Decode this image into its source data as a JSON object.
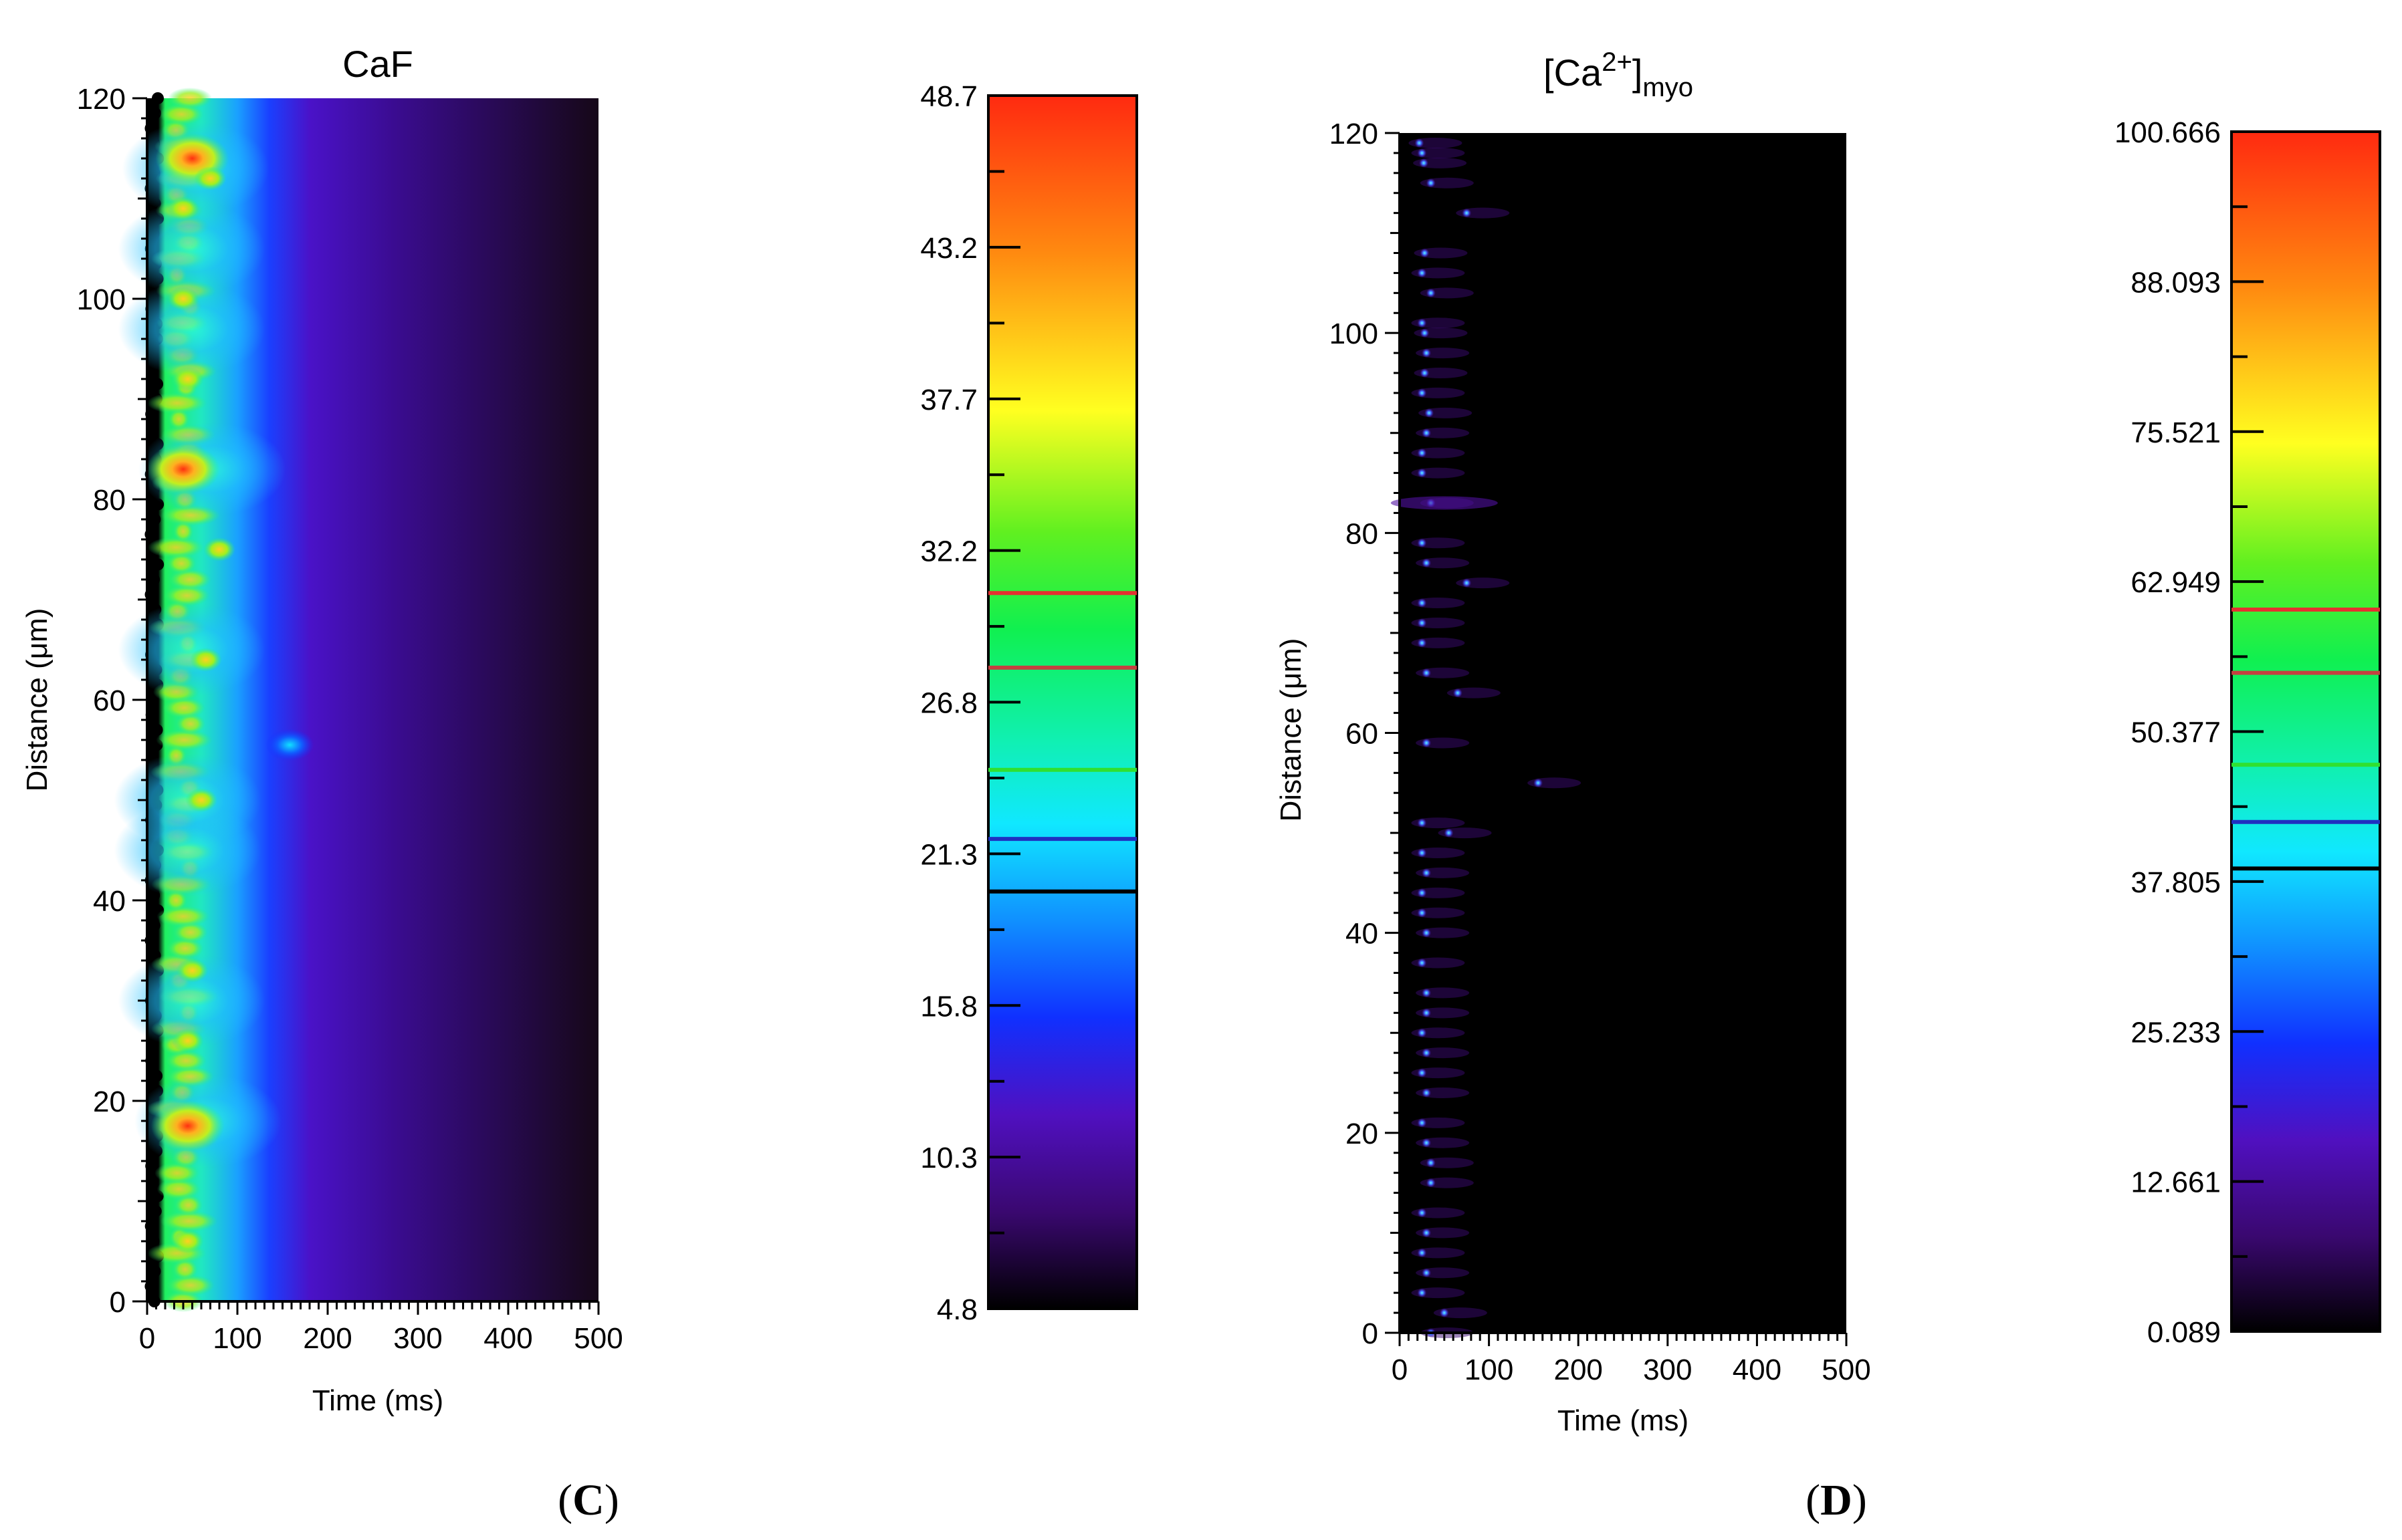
{
  "chart_data": [
    {
      "type": "heatmap",
      "title": "CaF",
      "xlabel": "Time (ms)",
      "ylabel": "Distance (μm)",
      "xlim": [
        0,
        500
      ],
      "ylim": [
        0,
        120
      ],
      "xticks": [
        "0",
        "100",
        "200",
        "300",
        "400",
        "500"
      ],
      "yticks": [
        "0",
        "20",
        "40",
        "60",
        "80",
        "100",
        "120"
      ],
      "colorbar": {
        "min": 4.8,
        "max": 48.7,
        "ticks": [
          "48.7",
          "43.2",
          "37.7",
          "32.2",
          "26.8",
          "21.3",
          "15.8",
          "10.3",
          "4.8"
        ],
        "contour_levels": [
          {
            "value": 30.7,
            "color": "#e53030"
          },
          {
            "value": 28.0,
            "color": "#c44040"
          },
          {
            "value": 24.3,
            "color": "#30e030"
          },
          {
            "value": 21.8,
            "color": "#2030c0"
          },
          {
            "value": 19.9,
            "color": "#000000"
          }
        ]
      },
      "panel_label": "C"
    },
    {
      "type": "heatmap",
      "title": "[Ca",
      "title_sup": "2+",
      "title_close": "]",
      "title_sub": "myo",
      "xlabel": "Time (ms)",
      "ylabel": "Distance (μm)",
      "xlim": [
        0,
        500
      ],
      "ylim": [
        0,
        120
      ],
      "xticks": [
        "0",
        "100",
        "200",
        "300",
        "400",
        "500"
      ],
      "yticks": [
        "0",
        "20",
        "40",
        "60",
        "80",
        "100",
        "120"
      ],
      "colorbar": {
        "min": 0.089,
        "max": 100.666,
        "ticks": [
          "100.666",
          "88.093",
          "75.521",
          "62.949",
          "50.377",
          "37.805",
          "25.233",
          "12.661",
          "0.089"
        ],
        "contour_levels": [
          {
            "value": 60.6,
            "color": "#e53030"
          },
          {
            "value": 55.3,
            "color": "#c44040"
          },
          {
            "value": 47.6,
            "color": "#30e030"
          },
          {
            "value": 42.8,
            "color": "#2030c0"
          },
          {
            "value": 38.9,
            "color": "#000000"
          }
        ]
      },
      "panel_label": "D"
    }
  ],
  "colors": {
    "caf_background": "#2a0a50",
    "caf_right": "#120818",
    "myo_background": "#000000"
  }
}
